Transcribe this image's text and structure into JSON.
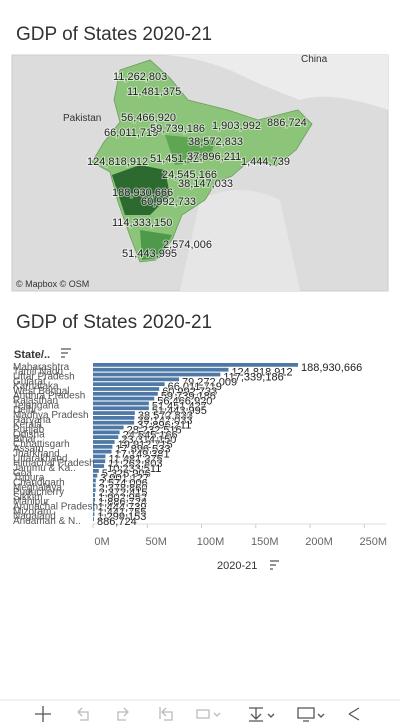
{
  "map": {
    "title": "GDP of States 2020-21",
    "place_labels": [
      "China",
      "Pakistan"
    ],
    "attribution": "© Mapbox © OSM",
    "labels": [
      "11,262,803",
      "11,481,375",
      "56,466,920",
      "66,011,719",
      "59,739,186",
      "124,818,912",
      "51,451,427",
      "37,896,211",
      "24,545,166",
      "38,147,033",
      "188,930,666",
      "60,992,733",
      "114,333,150",
      "2,574,006",
      "51,443,995",
      "886,724",
      "1,444,739",
      "38,572,833",
      "1,903,992"
    ]
  },
  "chart_data": {
    "type": "bar",
    "orientation": "horizontal",
    "title": "GDP of States 2020-21",
    "category_header": "State/..",
    "x_label": "2020-21",
    "color": "#4e79a7",
    "categories": [
      "Maharashtra",
      "Tamil Nadu",
      "Uttar Pradesh",
      "Gujarat",
      "Karnataka",
      "West Bengal",
      "Andhra Pradesh",
      "Rajasthan",
      "Telangana",
      "Delhi",
      "Madhya Pradesh",
      "Haryana",
      "Kerala",
      "Punjab",
      "Odisha",
      "Bihar",
      "Chhattisgarh",
      "Assam",
      "Jharkhand",
      "Uttarakhand",
      "Himachal Pradesh",
      "Jammu & Ka..",
      "Goa",
      "Tripura",
      "Chandigarh",
      "Meghalaya",
      "Puducherry",
      "Sikkim",
      "Manipur",
      "Arunachal Pradesh",
      "Mizoram",
      "Nagaland",
      "Andaman & N.."
    ],
    "values": [
      188930666,
      124818912,
      117339186,
      79272009,
      66011719,
      60992733,
      59739186,
      56466920,
      51451427,
      51443995,
      38572833,
      38147033,
      37896211,
      28232516,
      24545166,
      23314150,
      19912715,
      17896533,
      17149381,
      11481375,
      11262803,
      10233511,
      5326906,
      3901127,
      2574006,
      2378860,
      2372415,
      1902952,
      1886724,
      1444739,
      1441755,
      1299153,
      886724
    ],
    "value_labels": [
      "188,930,666",
      "124,818,912",
      "117,339,186",
      "79,272,009",
      "66,011,719",
      "60,992,733",
      "59,739,186",
      "56,466,920",
      "51,451,427",
      "51,443,995",
      "38,572,833",
      "38,147,033",
      "37,896,211",
      "28,232,516",
      "24,545,166",
      "23,314,150",
      "19,912,715",
      "17,896,533",
      "17,149,381",
      "11,481,375",
      "11,262,803",
      "10,233,511",
      "5,326,906",
      "3,901,127",
      "2,574,006",
      "2,378,860",
      "2,372,415",
      "1,902,952",
      "1,886,724",
      "1,444,739",
      "1,441,755",
      "1,299,153",
      "886,724"
    ],
    "xlim": [
      0,
      270000000
    ],
    "xticks": [
      {
        "value": 0,
        "label": "0M"
      },
      {
        "value": 50000000,
        "label": "50M"
      },
      {
        "value": 100000000,
        "label": "100M"
      },
      {
        "value": 150000000,
        "label": "150M"
      },
      {
        "value": 200000000,
        "label": "200M"
      },
      {
        "value": 250000000,
        "label": "250M"
      }
    ]
  }
}
